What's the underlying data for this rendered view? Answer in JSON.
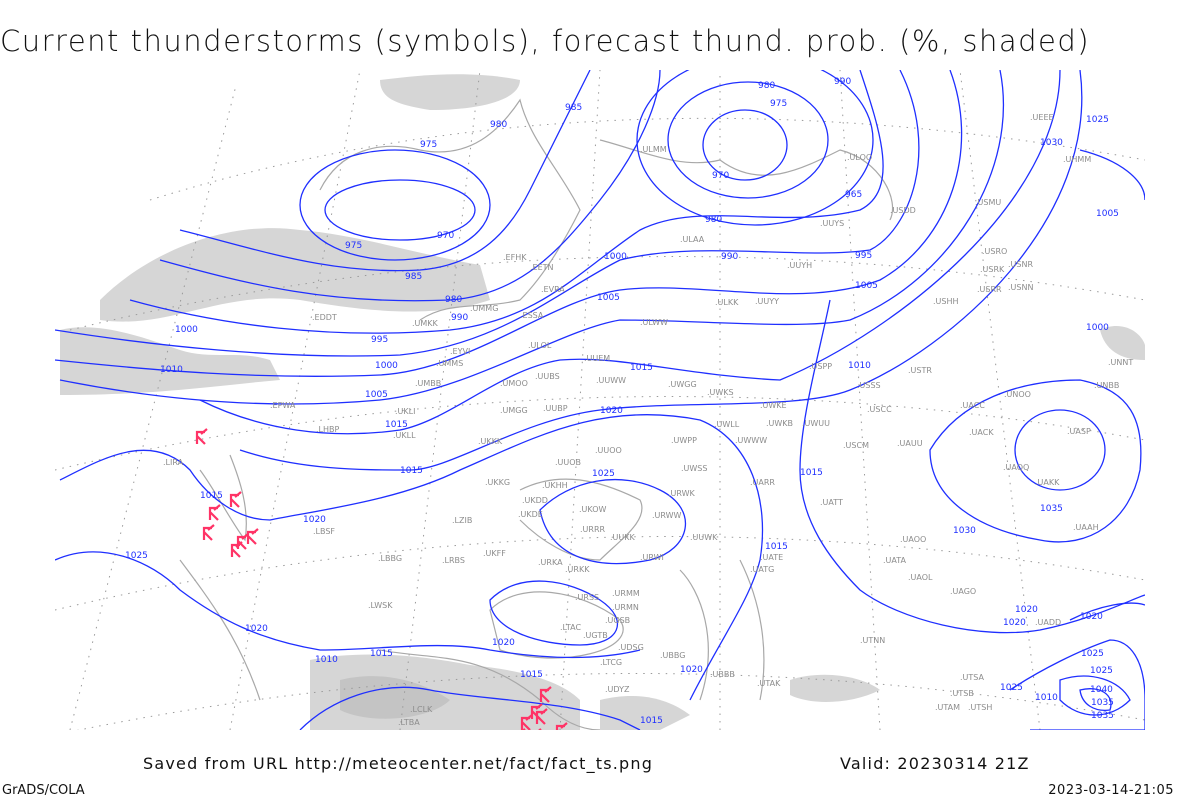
{
  "header": {
    "title": "Current thunderstorms (symbols), forecast thund. prob. (%, shaded)"
  },
  "footer": {
    "saved_from": "Saved from URL http://meteocenter.net/fact/fact_ts.png",
    "valid": "Valid: 20230314 21Z",
    "software": "GrADS/COLA",
    "timestamp": "2023-03-14-21:05"
  },
  "colors": {
    "isobar": "#1f2fff",
    "thunderstorm_symbol": "#ff3366",
    "probability_shading": "#d6d6d6",
    "coastline": "#a8a8a8",
    "station_label": "#8c8c8c"
  },
  "legend_symbols": {
    "thunderstorm": "thunderstorm-symbol-icon"
  },
  "isobar_labels": [
    "980",
    "990",
    "985",
    "975",
    "980",
    "970",
    "975",
    "970",
    "980",
    "965",
    "990",
    "995",
    "975",
    "985",
    "980",
    "990",
    "995",
    "1000",
    "1005",
    "1000",
    "1005",
    "1010",
    "1000",
    "1005",
    "1010",
    "1015",
    "1020",
    "1015",
    "1025",
    "1015",
    "1015",
    "1020",
    "1025",
    "1020",
    "1030",
    "1035",
    "1015",
    "1020",
    "1020",
    "1010",
    "1015",
    "1020",
    "1015",
    "1015",
    "1020",
    "1025",
    "1025",
    "1035",
    "1040",
    "1035",
    "1030",
    "1025",
    "1020",
    "1005",
    "1010",
    "1000",
    "1015",
    "1025"
  ],
  "stations": [
    "ULMM",
    "ULOO",
    "ULAA",
    "UUYS",
    "USDD",
    "USMU",
    "UUYH",
    "ULKK",
    "UUYY",
    "USRO",
    "USRK",
    "USNR",
    "USRR",
    "USNN",
    "USHH",
    "ULWW",
    "UUEM",
    "UUWW",
    "UWGG",
    "UWKS",
    "EYVI",
    "ULOL",
    "UMMS",
    "UMBB",
    "UMOO",
    "UUBS",
    "UMGG",
    "UUBP",
    "UKKK",
    "UUOO",
    "UUOB",
    "UKKG",
    "UKHH",
    "UKDD",
    "UKDE",
    "UKOW",
    "UWPP",
    "UWSS",
    "URWK",
    "URWW",
    "UWKE",
    "UWKB",
    "UWUU",
    "UWLL",
    "UWWW",
    "UARR",
    "UATT",
    "USPP",
    "USSS",
    "USCC",
    "USCM",
    "UAUU",
    "USTR",
    "UACC",
    "UACK",
    "UNOO",
    "UASP",
    "UAQQ",
    "UAKK",
    "UAAH",
    "UNNT",
    "UNBB",
    "UATA",
    "UAOL",
    "UAGO",
    "UADD",
    "UTNN",
    "UTSA",
    "UTSB",
    "UTAM",
    "UTSH",
    "UTAK",
    "UBBB",
    "URMM",
    "URMN",
    "URRR",
    "URWI",
    "URKK",
    "URKA",
    "UKFF",
    "LBBG",
    "LBSF",
    "LWSK",
    "LRBS",
    "LHBP",
    "LZIB",
    "LIRA",
    "EDDT",
    "UKLL",
    "UKLI",
    "EPWA",
    "UMKK",
    "UMMG",
    "ESSA",
    "EFHK",
    "EETN",
    "EVRA",
    "LTBA",
    "LTAC",
    "LTCG",
    "UGTB",
    "UGSB",
    "UDYZ",
    "UBBG",
    "LCLK",
    "UATE",
    "UATG",
    "UAOO",
    "UDSG",
    "URSS",
    "UUKK",
    "UUWK",
    "UEEE",
    "UHMM"
  ]
}
